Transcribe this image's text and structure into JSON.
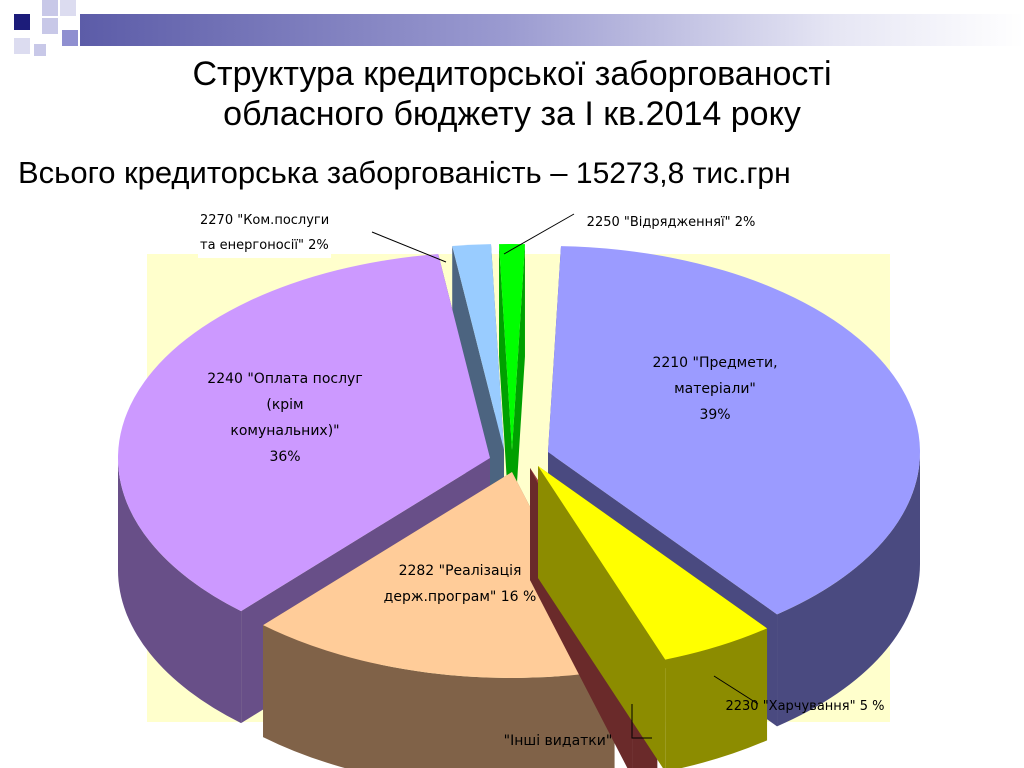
{
  "slide": {
    "title_line1": "Структура кредиторської заборгованості",
    "title_line2": "обласного бюджету за І кв.2014 року",
    "subtitle_text": "Всього кредиторська заборгованість ",
    "subtitle_dash": "–",
    "subtitle_value": " 15273,8 тис.грн"
  },
  "colors": {
    "deco_navy": "#1C1C7A",
    "deco_lavender": "#8F8FD0",
    "plot_background": "#FFFFCC"
  },
  "chart_data": {
    "type": "pie",
    "style": "3d-exploded",
    "title": "",
    "total": "15273,8 тис.грн",
    "slices": [
      {
        "code": "2210",
        "label": "2210 \"Предмети, матеріали\" 39%",
        "value": 39,
        "color": "#9B9BFF"
      },
      {
        "code": "2230",
        "label": "2230 \"Харчування\" 5 %",
        "value": 5,
        "color": "#FFFF00"
      },
      {
        "code": "other",
        "label": "\"Інші видатки\"",
        "value": null,
        "color": "#A04040"
      },
      {
        "code": "2282",
        "label": "2282 \"Реалізація держ.програм\" 16 %",
        "value": 16,
        "color": "#FFCC99"
      },
      {
        "code": "2240",
        "label": "2240 \"Оплата послуг (крім комунальних)\" 36%",
        "value": 36,
        "color": "#CC99FF"
      },
      {
        "code": "2270",
        "label": "2270 \"Ком.послуги та енергоносії\" 2%",
        "value": 2,
        "color": "#99CCFF"
      },
      {
        "code": "2250",
        "label": "2250 \"Відрядженняї\" 2%",
        "value": 2,
        "color": "#00FF00"
      }
    ]
  },
  "labels": {
    "s2210": "2210 \"Предмети,\nматеріали\"\n39%",
    "s2230": "2230 \"Харчування\" 5 %",
    "sother": "\"Інші видатки\"",
    "s2282": "2282 \"Реалізація\nдерж.програм\" 16 %",
    "s2240": "2240 \"Оплата послуг\n(крім\nкомунальних)\"\n36%",
    "s2270": "2270 \"Ком.послуги\nта енергоносії\" 2%",
    "s2250": "2250 \"Відрядженняї\" 2%"
  }
}
